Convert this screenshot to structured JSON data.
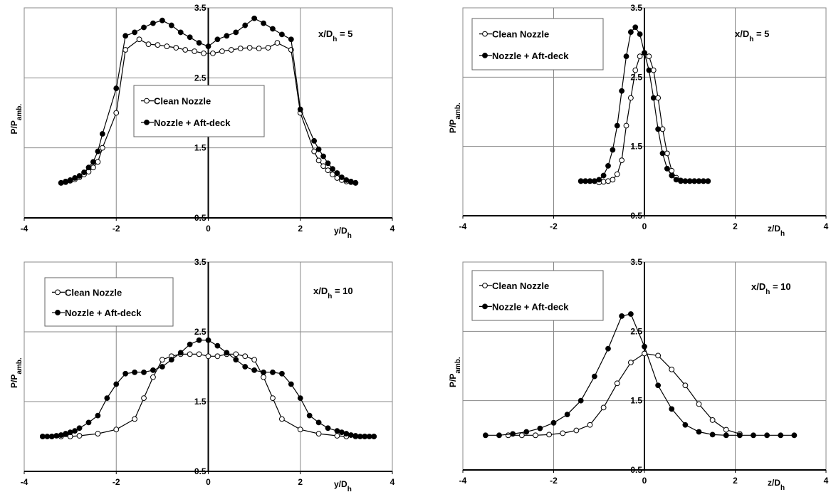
{
  "chart_data": [
    {
      "type": "line",
      "annotation": "x/D",
      "annotation_sub": "h",
      "annotation_tail": " = 5",
      "xlabel": "y/D",
      "xlabel_sub": "h",
      "ylabel": "P/P",
      "ylabel_sub": "amb.",
      "xlim": [
        -4,
        4
      ],
      "ylim": [
        0.5,
        3.5
      ],
      "xticks": [
        "-4",
        "-2",
        "0",
        "2",
        "4"
      ],
      "yticks": [
        "0.5",
        "1.5",
        "2.5",
        "3.5"
      ],
      "legend_position": "center",
      "series": [
        {
          "name": "Clean Nozzle",
          "marker": "open",
          "x": [
            -3.2,
            -3.1,
            -3.0,
            -2.9,
            -2.8,
            -2.7,
            -2.6,
            -2.5,
            -2.4,
            -2.3,
            -2.0,
            -1.8,
            -1.5,
            -1.3,
            -1.1,
            -0.9,
            -0.7,
            -0.5,
            -0.3,
            -0.1,
            0.1,
            0.3,
            0.5,
            0.7,
            0.9,
            1.1,
            1.3,
            1.5,
            1.8,
            2.0,
            2.3,
            2.4,
            2.5,
            2.6,
            2.7,
            2.8,
            2.9,
            3.0,
            3.1,
            3.2
          ],
          "y": [
            1.0,
            1.01,
            1.03,
            1.05,
            1.08,
            1.12,
            1.16,
            1.22,
            1.3,
            1.5,
            2.0,
            2.9,
            3.05,
            2.98,
            2.97,
            2.95,
            2.93,
            2.9,
            2.88,
            2.85,
            2.85,
            2.88,
            2.9,
            2.92,
            2.93,
            2.92,
            2.93,
            3.0,
            2.9,
            2.0,
            1.45,
            1.32,
            1.24,
            1.18,
            1.12,
            1.07,
            1.04,
            1.02,
            1.01,
            1.0
          ]
        },
        {
          "name": "Nozzle + Aft-deck",
          "marker": "filled",
          "x": [
            -3.2,
            -3.1,
            -3.0,
            -2.9,
            -2.8,
            -2.7,
            -2.6,
            -2.5,
            -2.4,
            -2.3,
            -2.0,
            -1.8,
            -1.6,
            -1.4,
            -1.2,
            -1.0,
            -0.8,
            -0.6,
            -0.4,
            -0.2,
            0.0,
            0.2,
            0.4,
            0.6,
            0.8,
            1.0,
            1.2,
            1.4,
            1.6,
            1.8,
            2.0,
            2.3,
            2.4,
            2.5,
            2.6,
            2.7,
            2.8,
            2.9,
            3.0,
            3.1,
            3.2
          ],
          "y": [
            1.0,
            1.02,
            1.04,
            1.07,
            1.1,
            1.15,
            1.22,
            1.3,
            1.45,
            1.7,
            2.35,
            3.1,
            3.15,
            3.22,
            3.28,
            3.32,
            3.25,
            3.15,
            3.08,
            3.0,
            2.95,
            3.05,
            3.1,
            3.15,
            3.25,
            3.35,
            3.28,
            3.2,
            3.12,
            3.05,
            2.05,
            1.6,
            1.48,
            1.38,
            1.28,
            1.2,
            1.14,
            1.08,
            1.04,
            1.02,
            1.0
          ]
        }
      ]
    },
    {
      "type": "line",
      "annotation": "x/D",
      "annotation_sub": "h",
      "annotation_tail": " = 5",
      "xlabel": "z/D",
      "xlabel_sub": "h",
      "ylabel": "P/P",
      "ylabel_sub": "amb.",
      "xlim": [
        -4,
        4
      ],
      "ylim": [
        0.5,
        3.5
      ],
      "xticks": [
        "-4",
        "-2",
        "0",
        "2",
        "4"
      ],
      "yticks": [
        "0.5",
        "1.5",
        "2.5",
        "3.5"
      ],
      "legend_position": "top-left",
      "series": [
        {
          "name": "Clean Nozzle",
          "marker": "open",
          "x": [
            -1.4,
            -1.3,
            -1.2,
            -1.1,
            -1.0,
            -0.9,
            -0.8,
            -0.7,
            -0.6,
            -0.5,
            -0.4,
            -0.3,
            -0.2,
            -0.1,
            0.0,
            0.1,
            0.2,
            0.3,
            0.4,
            0.5,
            0.6,
            0.7,
            0.8,
            0.9,
            1.0,
            1.1,
            1.2,
            1.3,
            1.4
          ],
          "y": [
            1.0,
            1.0,
            1.0,
            1.0,
            0.98,
            0.99,
            1.0,
            1.02,
            1.1,
            1.3,
            1.8,
            2.2,
            2.6,
            2.8,
            2.85,
            2.8,
            2.6,
            2.2,
            1.75,
            1.4,
            1.15,
            1.05,
            1.01,
            1.0,
            1.0,
            1.0,
            1.0,
            1.0,
            1.0
          ]
        },
        {
          "name": "Nozzle + Aft-deck",
          "marker": "filled",
          "x": [
            -1.4,
            -1.3,
            -1.2,
            -1.1,
            -1.0,
            -0.9,
            -0.8,
            -0.7,
            -0.6,
            -0.5,
            -0.4,
            -0.3,
            -0.2,
            -0.1,
            0.0,
            0.1,
            0.2,
            0.3,
            0.4,
            0.5,
            0.6,
            0.7,
            0.8,
            0.9,
            1.0,
            1.1,
            1.2,
            1.3,
            1.4
          ],
          "y": [
            1.0,
            1.0,
            1.0,
            1.0,
            1.02,
            1.08,
            1.22,
            1.45,
            1.8,
            2.3,
            2.8,
            3.15,
            3.22,
            3.12,
            2.85,
            2.6,
            2.2,
            1.75,
            1.4,
            1.18,
            1.08,
            1.02,
            1.0,
            1.0,
            1.0,
            1.0,
            1.0,
            1.0,
            1.0
          ]
        }
      ]
    },
    {
      "type": "line",
      "annotation": "x/D",
      "annotation_sub": "h",
      "annotation_tail": " = 10",
      "xlabel": "y/D",
      "xlabel_sub": "h",
      "ylabel": "P/P",
      "ylabel_sub": "amb.",
      "xlim": [
        -4,
        4
      ],
      "ylim": [
        0.5,
        3.5
      ],
      "xticks": [
        "-4",
        "-2",
        "0",
        "2",
        "4"
      ],
      "yticks": [
        "0.5",
        "1.5",
        "2.5",
        "3.5"
      ],
      "legend_position": "top-left",
      "series": [
        {
          "name": "Clean Nozzle",
          "marker": "open",
          "x": [
            -3.6,
            -3.4,
            -3.2,
            -3.0,
            -2.8,
            -2.4,
            -2.0,
            -1.6,
            -1.4,
            -1.2,
            -1.0,
            -0.8,
            -0.6,
            -0.4,
            -0.2,
            0.0,
            0.2,
            0.4,
            0.6,
            0.8,
            1.0,
            1.2,
            1.4,
            1.6,
            2.0,
            2.4,
            2.8,
            3.0,
            3.2,
            3.4,
            3.6
          ],
          "y": [
            1.0,
            1.0,
            1.0,
            1.0,
            1.01,
            1.04,
            1.1,
            1.25,
            1.55,
            1.85,
            2.1,
            2.15,
            2.18,
            2.18,
            2.18,
            2.15,
            2.15,
            2.18,
            2.18,
            2.15,
            2.1,
            1.85,
            1.55,
            1.25,
            1.1,
            1.04,
            1.01,
            1.0,
            1.0,
            1.0,
            1.0
          ]
        },
        {
          "name": "Nozzle + Aft-deck",
          "marker": "filled",
          "x": [
            -3.6,
            -3.5,
            -3.4,
            -3.3,
            -3.2,
            -3.1,
            -3.0,
            -2.9,
            -2.8,
            -2.6,
            -2.4,
            -2.2,
            -2.0,
            -1.8,
            -1.6,
            -1.4,
            -1.2,
            -1.0,
            -0.8,
            -0.6,
            -0.4,
            -0.2,
            0.0,
            0.2,
            0.4,
            0.6,
            0.8,
            1.0,
            1.2,
            1.4,
            1.6,
            1.8,
            2.0,
            2.2,
            2.4,
            2.6,
            2.8,
            2.9,
            3.0,
            3.1,
            3.2,
            3.3,
            3.4,
            3.5,
            3.6
          ],
          "y": [
            1.0,
            1.0,
            1.0,
            1.01,
            1.02,
            1.04,
            1.06,
            1.08,
            1.12,
            1.2,
            1.3,
            1.55,
            1.75,
            1.9,
            1.92,
            1.92,
            1.95,
            2.0,
            2.1,
            2.2,
            2.32,
            2.38,
            2.38,
            2.3,
            2.2,
            2.1,
            2.0,
            1.95,
            1.92,
            1.92,
            1.9,
            1.75,
            1.55,
            1.3,
            1.2,
            1.12,
            1.08,
            1.06,
            1.04,
            1.02,
            1.01,
            1.0,
            1.0,
            1.0,
            1.0
          ]
        }
      ]
    },
    {
      "type": "line",
      "annotation": "x/D",
      "annotation_sub": "h",
      "annotation_tail": " = 10",
      "xlabel": "z/D",
      "xlabel_sub": "h",
      "ylabel": "P/P",
      "ylabel_sub": "amb.",
      "xlim": [
        -4,
        4
      ],
      "ylim": [
        0.5,
        3.5
      ],
      "xticks": [
        "-4",
        "-2",
        "0",
        "2",
        "4"
      ],
      "yticks": [
        "0.5",
        "1.5",
        "2.5",
        "3.5"
      ],
      "legend_position": "top-left",
      "series": [
        {
          "name": "Clean Nozzle",
          "marker": "open",
          "x": [
            -3.0,
            -2.7,
            -2.4,
            -2.1,
            -1.8,
            -1.5,
            -1.2,
            -0.9,
            -0.6,
            -0.3,
            0.0,
            0.3,
            0.6,
            0.9,
            1.2,
            1.5,
            1.8,
            2.1
          ],
          "y": [
            1.0,
            1.0,
            1.0,
            1.01,
            1.03,
            1.07,
            1.15,
            1.4,
            1.75,
            2.05,
            2.18,
            2.15,
            1.95,
            1.72,
            1.45,
            1.22,
            1.08,
            1.02
          ]
        },
        {
          "name": "Nozzle + Aft-deck",
          "marker": "filled",
          "x": [
            -3.5,
            -3.2,
            -2.9,
            -2.6,
            -2.3,
            -2.0,
            -1.7,
            -1.4,
            -1.1,
            -0.8,
            -0.5,
            -0.3,
            0.0,
            0.3,
            0.6,
            0.9,
            1.2,
            1.5,
            1.8,
            2.1,
            2.4,
            2.7,
            3.0,
            3.3
          ],
          "y": [
            1.0,
            1.0,
            1.02,
            1.05,
            1.1,
            1.18,
            1.3,
            1.5,
            1.85,
            2.25,
            2.72,
            2.75,
            2.28,
            1.72,
            1.38,
            1.15,
            1.05,
            1.01,
            1.0,
            1.0,
            1.0,
            1.0,
            1.0,
            1.0
          ]
        }
      ]
    }
  ]
}
